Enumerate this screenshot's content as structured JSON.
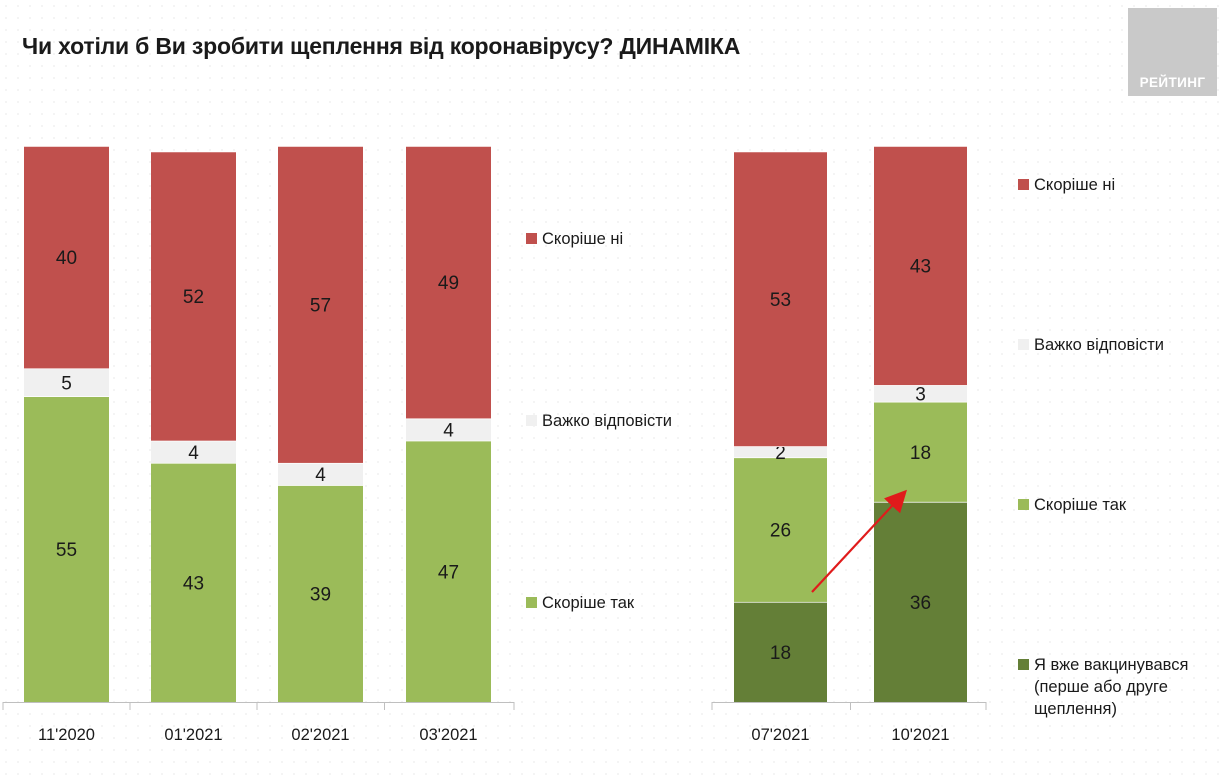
{
  "header": {
    "title": "Чи хотіли б Ви зробити щеплення від коронавірусу? ДИНАМІКА",
    "logo_text": "РЕЙТИНГ"
  },
  "colors": {
    "no": "#c0504d",
    "hard": "#f0f0f0",
    "yes": "#9bbb59",
    "vaccinated": "#647f37",
    "arrow": "#e01b1b"
  },
  "chart_data": [
    {
      "type": "bar",
      "stacked": true,
      "categories": [
        "11'2020",
        "01'2021",
        "02'2021",
        "03'2021"
      ],
      "series": [
        {
          "name": "Скоріше так",
          "key": "yes",
          "values": [
            55,
            43,
            39,
            47
          ]
        },
        {
          "name": "Важко відповісти",
          "key": "hard",
          "values": [
            5,
            4,
            4,
            4
          ]
        },
        {
          "name": "Скоріше ні",
          "key": "no",
          "values": [
            40,
            52,
            57,
            49
          ]
        }
      ],
      "legend": [
        "Скоріше ні",
        "Важко відповісти",
        "Скоріше так"
      ],
      "ylim": [
        0,
        100
      ]
    },
    {
      "type": "bar",
      "stacked": true,
      "categories": [
        "07'2021",
        "10'2021"
      ],
      "series": [
        {
          "name": "Я вже вакцинувався (перше або друге щеплення)",
          "key": "vaccinated",
          "values": [
            18,
            36
          ]
        },
        {
          "name": "Скоріше так",
          "key": "yes",
          "values": [
            26,
            18
          ]
        },
        {
          "name": "Важко відповісти",
          "key": "hard",
          "values": [
            2,
            3
          ]
        },
        {
          "name": "Скоріше ні",
          "key": "no",
          "values": [
            53,
            43
          ]
        }
      ],
      "legend": [
        "Скоріше ні",
        "Важко відповісти",
        "Скоріше так",
        "Я вже вакцинувався (перше або друге щеплення)"
      ],
      "ylim": [
        0,
        100
      ]
    }
  ],
  "legend_left": [
    {
      "key": "no",
      "label": "Скоріше ні"
    },
    {
      "key": "hard",
      "label": "Важко відповісти"
    },
    {
      "key": "yes",
      "label": "Скоріше так"
    }
  ],
  "legend_right": [
    {
      "key": "no",
      "label": "Скоріше ні"
    },
    {
      "key": "hard",
      "label": "Важко відповісти"
    },
    {
      "key": "yes",
      "label": "Скоріше так"
    },
    {
      "key": "vaccinated",
      "label": "Я вже вакцинувався (перше або друге щеплення)",
      "lines": [
        "Я вже вакцинувався",
        "(перше або друге",
        "щеплення)"
      ]
    }
  ]
}
